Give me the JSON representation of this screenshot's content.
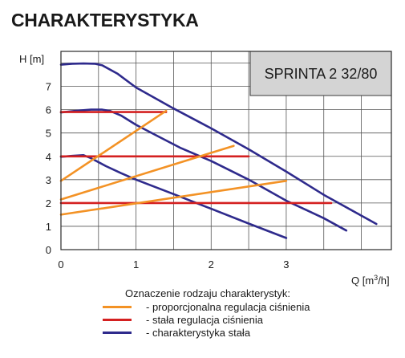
{
  "title": "CHARAKTERYSTYKA",
  "chart_data": {
    "type": "line",
    "model": "SPRINTA 2 32/80",
    "xlabel": "Q [m³/h]",
    "ylabel": "H [m]",
    "xlim": [
      0,
      4.4
    ],
    "ylim": [
      0,
      8.5
    ],
    "xticks": [
      "0",
      "1",
      "2",
      "3"
    ],
    "yticks": [
      "0",
      "1",
      "2",
      "3",
      "4",
      "5",
      "6",
      "7"
    ],
    "grid": true,
    "series": [
      {
        "name": "- charakterystyka stała",
        "color": "#2e2a8c",
        "x": [
          0,
          0.15,
          0.3,
          0.45,
          0.55,
          0.75,
          1.0,
          1.5,
          2.0,
          2.5,
          3.0,
          3.5,
          4.2
        ],
        "y": [
          7.93,
          7.97,
          7.98,
          7.97,
          7.9,
          7.55,
          6.95,
          6.05,
          5.2,
          4.3,
          3.35,
          2.35,
          1.1
        ]
      },
      {
        "name": "- charakterystyka stała",
        "color": "#2e2a8c",
        "x": [
          0,
          0.2,
          0.4,
          0.55,
          0.65,
          0.8,
          1.0,
          1.3,
          1.6,
          2.0,
          2.5,
          3.0,
          3.5,
          3.8
        ],
        "y": [
          5.88,
          5.95,
          6.0,
          6.0,
          5.95,
          5.75,
          5.35,
          4.85,
          4.35,
          3.8,
          3.0,
          2.1,
          1.35,
          0.82
        ]
      },
      {
        "name": "- charakterystyka stała",
        "color": "#2e2a8c",
        "x": [
          0,
          0.15,
          0.3,
          0.4,
          0.6,
          0.8,
          1.0,
          1.5,
          2.0,
          2.5,
          3.0
        ],
        "y": [
          3.98,
          4.02,
          4.05,
          3.92,
          3.58,
          3.28,
          3.0,
          2.38,
          1.75,
          1.12,
          0.5
        ]
      },
      {
        "name": "- stała regulacja ciśnienia",
        "color": "#d42020",
        "x": [
          0,
          1.4
        ],
        "y": [
          5.9,
          5.9
        ]
      },
      {
        "name": "- stała regulacja ciśnienia",
        "color": "#d42020",
        "x": [
          0,
          2.5
        ],
        "y": [
          4.0,
          4.0
        ]
      },
      {
        "name": "- stała regulacja ciśnienia",
        "color": "#d42020",
        "x": [
          0,
          3.6
        ],
        "y": [
          2.0,
          2.0
        ]
      },
      {
        "name": "- proporcjonalna regulacja ciśnienia",
        "color": "#f39225",
        "x": [
          0,
          1.4
        ],
        "y": [
          2.95,
          5.95
        ]
      },
      {
        "name": "- proporcjonalna regulacja ciśnienia",
        "color": "#f39225",
        "x": [
          0,
          2.3
        ],
        "y": [
          2.15,
          4.45
        ]
      },
      {
        "name": "- proporcjonalna regulacja ciśnienia",
        "color": "#f39225",
        "x": [
          0,
          3.0
        ],
        "y": [
          1.5,
          2.95
        ]
      }
    ],
    "legend": {
      "placement": "bottom",
      "title": "Oznaczenie rodzaju charakterystyk:",
      "entries": [
        {
          "label": "- proporcjonalna regulacja ciśnienia",
          "color": "#f39225"
        },
        {
          "label": "- stała regulacja ciśnienia",
          "color": "#d42020"
        },
        {
          "label": "- charakterystyka stała",
          "color": "#2e2a8c"
        }
      ]
    }
  }
}
